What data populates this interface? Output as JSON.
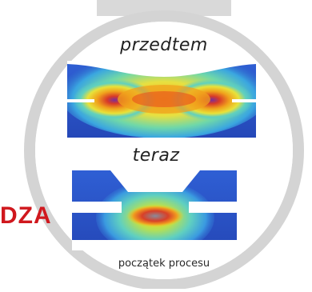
{
  "labels": {
    "before": "przedtem",
    "after": "teraz",
    "caption": "początek procesu",
    "side_word": "DZA"
  },
  "colors": {
    "ring": "#d2d2d2",
    "panel_blue": "#2c57c8",
    "heat_red": "#e8401c",
    "heat_yellow": "#f2dc1c",
    "heat_purple": "#7a2f9a",
    "side_word": "#d0181e"
  }
}
